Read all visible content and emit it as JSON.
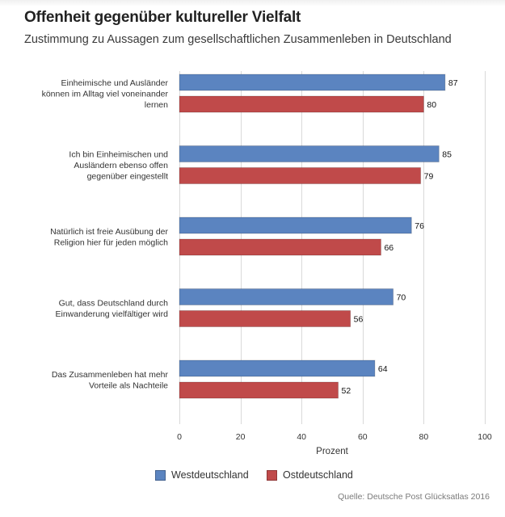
{
  "header": {
    "title": "Offenheit gegenüber kultureller Vielfalt",
    "subtitle": "Zustimmung zu Aussagen zum gesellschaftlichen Zusammenleben in Deutschland"
  },
  "source": "Quelle: Deutsche Post Glücksatlas 2016",
  "colors": {
    "west": "#5b84c0",
    "ost": "#c04a4a",
    "grid": "#d9d9d9"
  },
  "chart_data": {
    "type": "bar",
    "orientation": "horizontal",
    "title": "Offenheit gegenüber kultureller Vielfalt",
    "subtitle": "Zustimmung zu Aussagen zum gesellschaftlichen Zusammenleben in Deutschland",
    "xlabel": "Prozent",
    "ylabel": "",
    "xlim": [
      0,
      100
    ],
    "xticks": [
      0,
      20,
      40,
      60,
      80,
      100
    ],
    "grid": true,
    "legend_position": "bottom",
    "categories": [
      [
        "Einheimische und Ausländer",
        "können im Alltag viel voneinander",
        "lernen"
      ],
      [
        "Ich bin Einheimischen und",
        "Ausländern ebenso offen",
        "gegenüber eingestellt"
      ],
      [
        "Natürlich ist freie Ausübung der",
        "Religion hier für jeden möglich"
      ],
      [
        "Gut, dass Deutschland durch",
        "Einwanderung vielfältiger wird"
      ],
      [
        "Das Zusammenleben hat mehr",
        "Vorteile als Nachteile"
      ]
    ],
    "series": [
      {
        "name": "Westdeutschland",
        "color": "#5b84c0",
        "values": [
          87,
          85,
          76,
          70,
          64
        ]
      },
      {
        "name": "Ostdeutschland",
        "color": "#c04a4a",
        "values": [
          80,
          79,
          66,
          56,
          52
        ]
      }
    ]
  }
}
